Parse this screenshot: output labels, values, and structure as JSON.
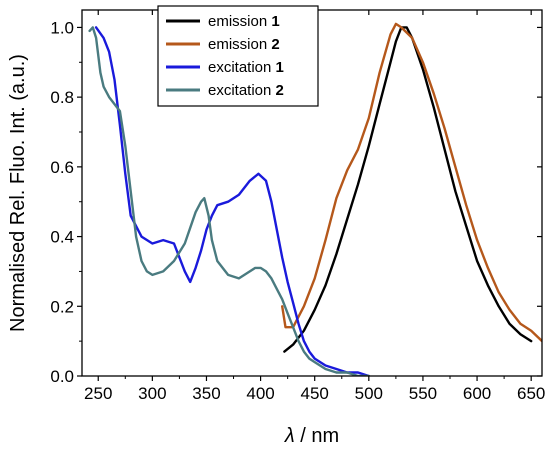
{
  "chart_data": {
    "type": "line",
    "xlabel": {
      "symbol": "λ",
      "unit": " / nm"
    },
    "ylabel": "Normalised Rel. Fluo. Int. (a.u.)",
    "xlim": [
      235,
      660
    ],
    "ylim": [
      0,
      1.05
    ],
    "x_ticks": [
      250,
      300,
      350,
      400,
      450,
      500,
      550,
      600,
      650
    ],
    "y_ticks": [
      0.0,
      0.2,
      0.4,
      0.6,
      0.8,
      1.0
    ],
    "y_tick_labels": [
      "0.0",
      "0.2",
      "0.4",
      "0.6",
      "0.8",
      "1.0"
    ],
    "grid": false,
    "legend_position": "top-center",
    "series": [
      {
        "label": "emission",
        "number": "1",
        "color": "#000000",
        "points": [
          [
            422,
            0.07
          ],
          [
            430,
            0.09
          ],
          [
            440,
            0.13
          ],
          [
            450,
            0.19
          ],
          [
            460,
            0.26
          ],
          [
            470,
            0.35
          ],
          [
            480,
            0.45
          ],
          [
            490,
            0.55
          ],
          [
            500,
            0.66
          ],
          [
            510,
            0.78
          ],
          [
            520,
            0.9
          ],
          [
            525,
            0.96
          ],
          [
            530,
            1.0
          ],
          [
            535,
            1.0
          ],
          [
            540,
            0.97
          ],
          [
            550,
            0.88
          ],
          [
            560,
            0.77
          ],
          [
            570,
            0.65
          ],
          [
            580,
            0.53
          ],
          [
            590,
            0.43
          ],
          [
            600,
            0.33
          ],
          [
            610,
            0.26
          ],
          [
            620,
            0.2
          ],
          [
            630,
            0.15
          ],
          [
            640,
            0.12
          ],
          [
            650,
            0.1
          ]
        ]
      },
      {
        "label": "emission",
        "number": "2",
        "color": "#b5581b",
        "points": [
          [
            420,
            0.2
          ],
          [
            423,
            0.14
          ],
          [
            430,
            0.14
          ],
          [
            440,
            0.2
          ],
          [
            450,
            0.28
          ],
          [
            460,
            0.39
          ],
          [
            470,
            0.51
          ],
          [
            480,
            0.59
          ],
          [
            490,
            0.65
          ],
          [
            500,
            0.74
          ],
          [
            510,
            0.87
          ],
          [
            520,
            0.98
          ],
          [
            525,
            1.01
          ],
          [
            530,
            1.0
          ],
          [
            540,
            0.97
          ],
          [
            550,
            0.9
          ],
          [
            560,
            0.81
          ],
          [
            570,
            0.71
          ],
          [
            580,
            0.6
          ],
          [
            590,
            0.49
          ],
          [
            600,
            0.39
          ],
          [
            610,
            0.31
          ],
          [
            620,
            0.24
          ],
          [
            630,
            0.19
          ],
          [
            640,
            0.15
          ],
          [
            650,
            0.13
          ],
          [
            660,
            0.1
          ]
        ]
      },
      {
        "label": "excitation",
        "number": "1",
        "color": "#1a1adb",
        "points": [
          [
            248,
            1.0
          ],
          [
            255,
            0.97
          ],
          [
            260,
            0.93
          ],
          [
            265,
            0.85
          ],
          [
            270,
            0.72
          ],
          [
            275,
            0.58
          ],
          [
            280,
            0.46
          ],
          [
            290,
            0.4
          ],
          [
            300,
            0.38
          ],
          [
            310,
            0.39
          ],
          [
            320,
            0.38
          ],
          [
            330,
            0.3
          ],
          [
            335,
            0.27
          ],
          [
            340,
            0.31
          ],
          [
            345,
            0.36
          ],
          [
            350,
            0.42
          ],
          [
            355,
            0.46
          ],
          [
            360,
            0.49
          ],
          [
            370,
            0.5
          ],
          [
            380,
            0.52
          ],
          [
            390,
            0.56
          ],
          [
            398,
            0.58
          ],
          [
            405,
            0.56
          ],
          [
            410,
            0.5
          ],
          [
            415,
            0.42
          ],
          [
            420,
            0.34
          ],
          [
            425,
            0.27
          ],
          [
            430,
            0.21
          ],
          [
            435,
            0.15
          ],
          [
            440,
            0.1
          ],
          [
            445,
            0.07
          ],
          [
            450,
            0.05
          ],
          [
            460,
            0.03
          ],
          [
            470,
            0.02
          ],
          [
            480,
            0.01
          ],
          [
            490,
            0.01
          ],
          [
            500,
            0.0
          ]
        ]
      },
      {
        "label": "excitation",
        "number": "2",
        "color": "#4a7b80",
        "points": [
          [
            242,
            0.99
          ],
          [
            245,
            1.0
          ],
          [
            248,
            0.97
          ],
          [
            252,
            0.87
          ],
          [
            255,
            0.83
          ],
          [
            260,
            0.8
          ],
          [
            265,
            0.78
          ],
          [
            270,
            0.76
          ],
          [
            275,
            0.66
          ],
          [
            280,
            0.53
          ],
          [
            285,
            0.4
          ],
          [
            290,
            0.33
          ],
          [
            295,
            0.3
          ],
          [
            300,
            0.29
          ],
          [
            310,
            0.3
          ],
          [
            320,
            0.33
          ],
          [
            330,
            0.38
          ],
          [
            340,
            0.47
          ],
          [
            345,
            0.5
          ],
          [
            348,
            0.51
          ],
          [
            352,
            0.46
          ],
          [
            355,
            0.39
          ],
          [
            360,
            0.33
          ],
          [
            370,
            0.29
          ],
          [
            380,
            0.28
          ],
          [
            390,
            0.3
          ],
          [
            395,
            0.31
          ],
          [
            400,
            0.31
          ],
          [
            405,
            0.3
          ],
          [
            410,
            0.28
          ],
          [
            415,
            0.25
          ],
          [
            420,
            0.22
          ],
          [
            425,
            0.18
          ],
          [
            430,
            0.14
          ],
          [
            435,
            0.1
          ],
          [
            440,
            0.07
          ],
          [
            445,
            0.05
          ],
          [
            450,
            0.04
          ],
          [
            460,
            0.02
          ],
          [
            470,
            0.01
          ],
          [
            480,
            0.01
          ],
          [
            490,
            0.0
          ],
          [
            500,
            0.0
          ]
        ]
      }
    ]
  }
}
